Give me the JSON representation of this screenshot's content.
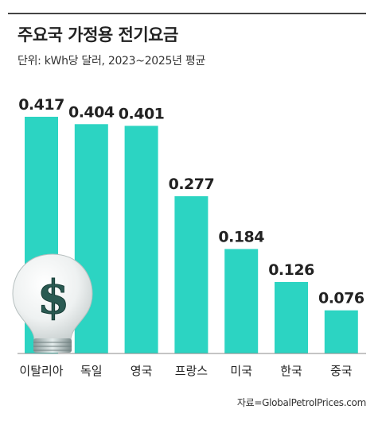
{
  "title": "주요국 가정용 전기요금",
  "subtitle": "단위: kWh당 달러, 2023~2025년 평균",
  "source": "자료=GlobalPetrolPrices.com",
  "colors": {
    "bar": "#2cd4c2",
    "text": "#222222"
  },
  "decoration": {
    "icon": "lightbulb-dollar-icon"
  },
  "chart_data": {
    "type": "bar",
    "title": "주요국 가정용 전기요금",
    "subtitle": "단위: kWh당 달러, 2023~2025년 평균",
    "categories": [
      "이탈리아",
      "독일",
      "영국",
      "프랑스",
      "미국",
      "한국",
      "중국"
    ],
    "values": [
      0.417,
      0.404,
      0.401,
      0.277,
      0.184,
      0.126,
      0.076
    ],
    "value_labels": [
      "0.417",
      "0.404",
      "0.401",
      "0.277",
      "0.184",
      "0.126",
      "0.076"
    ],
    "ylim": [
      0,
      0.417
    ],
    "grid": false,
    "legend": "none"
  }
}
